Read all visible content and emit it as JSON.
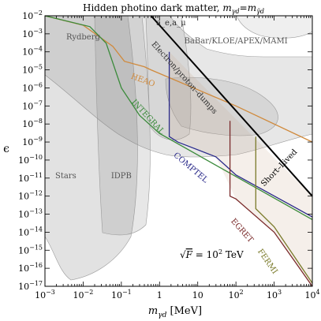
{
  "chart_data": {
    "type": "area",
    "title": {
      "text": "Hidden photino dark matter, ",
      "math": "m",
      "sub1": "γd",
      "eq": "=",
      "math2": "m",
      "sub2": "γ̃d"
    },
    "xlabel": {
      "math": "m",
      "sub": "γd",
      "rest": " [MeV]"
    },
    "ylabel": "ϵ",
    "x_scale": "log",
    "y_scale": "log",
    "xlim": [
      0.001,
      10000
    ],
    "ylim": [
      1e-17,
      0.01
    ],
    "x_ticks": [
      {
        "value": 0.001,
        "base": "10",
        "exp": "−3"
      },
      {
        "value": 0.01,
        "base": "10",
        "exp": "−2"
      },
      {
        "value": 0.1,
        "base": "10",
        "exp": "−1"
      },
      {
        "value": 1,
        "base": "1",
        "exp": ""
      },
      {
        "value": 10,
        "base": "10",
        "exp": ""
      },
      {
        "value": 100,
        "base": "10",
        "exp": "2"
      },
      {
        "value": 1000,
        "base": "10",
        "exp": "3"
      },
      {
        "value": 10000,
        "base": "10",
        "exp": "4"
      }
    ],
    "y_ticks": [
      {
        "value": 0.01,
        "exp": "−2"
      },
      {
        "value": 0.001,
        "exp": "−3"
      },
      {
        "value": 0.0001,
        "exp": "−4"
      },
      {
        "value": 1e-05,
        "exp": "−5"
      },
      {
        "value": 1e-06,
        "exp": "−6"
      },
      {
        "value": 1e-07,
        "exp": "−7"
      },
      {
        "value": 1e-08,
        "exp": "−8"
      },
      {
        "value": 1e-09,
        "exp": "−9"
      },
      {
        "value": 1e-10,
        "exp": "−10"
      },
      {
        "value": 1e-11,
        "exp": "−11"
      },
      {
        "value": 1e-12,
        "exp": "−12"
      },
      {
        "value": 1e-13,
        "exp": "−13"
      },
      {
        "value": 1e-14,
        "exp": "−14"
      },
      {
        "value": 1e-15,
        "exp": "−15"
      },
      {
        "value": 1e-16,
        "exp": "−16"
      },
      {
        "value": 1e-17,
        "exp": "−17"
      }
    ],
    "region_labels": [
      {
        "text": "Rydberg",
        "x": 0.01,
        "y": 0.0005
      },
      {
        "text": "BaBar/KLOE/APEX/MAMI",
        "x": 100,
        "y": 0.0003
      },
      {
        "text": "Stars",
        "x": 0.0035,
        "y": 1e-11
      },
      {
        "text": "IDPB",
        "x": 0.1,
        "y": 1e-11
      }
    ],
    "series": [
      {
        "name": "HEAO",
        "color": "#d08a3c",
        "points": [
          [
            0.001,
            0.01
          ],
          [
            0.01,
            0.003
          ],
          [
            0.06,
            0.0002
          ],
          [
            0.12,
            3e-05
          ],
          [
            0.4,
            1.5e-05
          ],
          [
            0.6,
            1e-05
          ],
          [
            100,
            1e-07
          ],
          [
            10000,
            1e-09
          ]
        ]
      },
      {
        "name": "INTEGRAL",
        "color": "#3a8a3a",
        "points": [
          [
            0.001,
            0.01
          ],
          [
            0.015,
            0.0025
          ],
          [
            0.04,
            0.0003
          ],
          [
            0.1,
            1e-06
          ],
          [
            0.3,
            3e-08
          ],
          [
            1,
            3e-09
          ],
          [
            10000,
            5e-14
          ]
        ]
      },
      {
        "name": "COMPTEL",
        "color": "#2a2a8a",
        "points": [
          [
            1.8,
            0.0001
          ],
          [
            1.8,
            2e-09
          ],
          [
            3,
            1e-09
          ],
          [
            30,
            1.5e-10
          ],
          [
            60,
            4e-11
          ],
          [
            100,
            1.5e-11
          ],
          [
            10000,
            7e-14
          ]
        ]
      },
      {
        "name": "EGRET",
        "color": "#7a2a2a",
        "points": [
          [
            70,
            1.5e-08
          ],
          [
            70,
            1e-12
          ],
          [
            100,
            7e-13
          ],
          [
            1000,
            1e-14
          ],
          [
            10000,
            1e-17
          ]
        ]
      },
      {
        "name": "FERMI",
        "color": "#7a7a2a",
        "points": [
          [
            330,
            2e-09
          ],
          [
            330,
            2e-13
          ],
          [
            1000,
            2e-14
          ],
          [
            10000,
            1.5e-17
          ]
        ]
      },
      {
        "name": "Short–Lived",
        "color": "#000000",
        "points": [
          [
            0.6,
            0.01
          ],
          [
            10000,
            1e-12
          ]
        ]
      }
    ],
    "curve_labels": [
      {
        "text": "HEAO",
        "x": 0.35,
        "y": 2e-06,
        "angle": 20
      },
      {
        "text": "INTEGRAL",
        "x": 0.45,
        "y": 2e-08,
        "angle": 47
      },
      {
        "text": "COMPTEL",
        "x": 6,
        "y": 3e-11,
        "angle": 40
      },
      {
        "text": "EGRET",
        "x": 130,
        "y": 1e-14,
        "angle": 48
      },
      {
        "text": "FERMI",
        "x": 600,
        "y": 2e-16,
        "angle": 55
      },
      {
        "text": "Short–Lived",
        "x": 1500,
        "y": 3e-11,
        "angle": -46
      },
      {
        "text": "Electron/proton–dumps",
        "x": 4,
        "y": 3e-06,
        "angle": 48
      },
      {
        "text": "a_e,a_μ",
        "x": 2,
        "y": 0.003,
        "angle": 0
      }
    ],
    "annotation": {
      "lhs": "F",
      "eq": " = 10",
      "exp": "2",
      "unit": " TeV",
      "x": 10,
      "y": 2e-16
    }
  }
}
